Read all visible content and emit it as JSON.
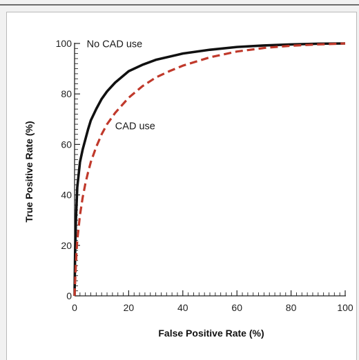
{
  "chart_data": {
    "type": "line",
    "xlabel": "False Positive Rate (%)",
    "ylabel": "True Positive Rate (%)",
    "xlim": [
      0,
      100
    ],
    "ylim": [
      0,
      100
    ],
    "x_ticks": [
      0,
      20,
      40,
      60,
      80,
      100
    ],
    "y_ticks": [
      0,
      20,
      40,
      60,
      80,
      100
    ],
    "minor_tick_step": 2,
    "grid": false,
    "legend": "none",
    "series": [
      {
        "name": "No CAD use",
        "color": "#111111",
        "style": "solid",
        "points": [
          [
            0,
            0
          ],
          [
            0.2,
            17
          ],
          [
            0.5,
            30
          ],
          [
            1,
            43
          ],
          [
            2,
            53
          ],
          [
            3,
            58
          ],
          [
            4,
            62
          ],
          [
            5,
            66
          ],
          [
            6,
            69.5
          ],
          [
            8,
            74
          ],
          [
            10,
            78
          ],
          [
            12,
            81
          ],
          [
            15,
            84.5
          ],
          [
            20,
            89
          ],
          [
            25,
            91.5
          ],
          [
            30,
            93.5
          ],
          [
            40,
            96
          ],
          [
            50,
            97.5
          ],
          [
            60,
            98.6
          ],
          [
            70,
            99.2
          ],
          [
            80,
            99.6
          ],
          [
            90,
            99.9
          ],
          [
            100,
            100
          ]
        ]
      },
      {
        "name": "CAD use",
        "color": "#c0392b",
        "style": "dashed",
        "points": [
          [
            0,
            0
          ],
          [
            0.3,
            8
          ],
          [
            0.7,
            17
          ],
          [
            1,
            22
          ],
          [
            2,
            32
          ],
          [
            3,
            39
          ],
          [
            4,
            44.5
          ],
          [
            5,
            49
          ],
          [
            6,
            53
          ],
          [
            8,
            59
          ],
          [
            10,
            64
          ],
          [
            12,
            68
          ],
          [
            15,
            72.5
          ],
          [
            20,
            78.5
          ],
          [
            25,
            83
          ],
          [
            30,
            86.5
          ],
          [
            35,
            89
          ],
          [
            40,
            91.2
          ],
          [
            50,
            94.5
          ],
          [
            60,
            96.8
          ],
          [
            70,
            98.2
          ],
          [
            80,
            99.1
          ],
          [
            90,
            99.6
          ],
          [
            100,
            100
          ]
        ]
      }
    ],
    "annotations": [
      {
        "text": "No CAD use",
        "series": "No CAD use",
        "x": 4.5,
        "y": 98.5
      },
      {
        "text": "CAD use",
        "series": "CAD use",
        "x": 15,
        "y": 66
      }
    ]
  }
}
